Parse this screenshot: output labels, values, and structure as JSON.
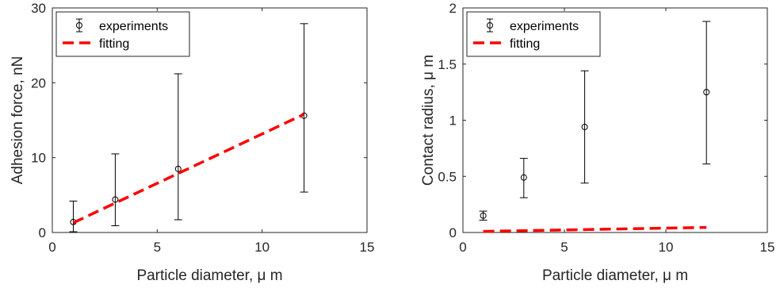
{
  "chart_data": [
    {
      "type": "scatter",
      "title": "",
      "xlabel": "Particle diameter, μ m",
      "ylabel": "Adhesion force, nN",
      "xlim": [
        0,
        15
      ],
      "ylim": [
        0,
        30
      ],
      "xticks": [
        0,
        5,
        10,
        15
      ],
      "yticks": [
        0,
        10,
        20,
        30
      ],
      "xtick_labels": [
        "0",
        "5",
        "10",
        "15"
      ],
      "ytick_labels": [
        "0",
        "10",
        "20",
        "30"
      ],
      "legend_position": "top-left",
      "grid": false,
      "series": [
        {
          "name": "experiments",
          "style": "errorbar",
          "color": "#000000",
          "points": [
            {
              "x": 1,
              "y": 1.4,
              "low": 0.1,
              "high": 4.2
            },
            {
              "x": 3,
              "y": 4.4,
              "low": 0.9,
              "high": 10.5
            },
            {
              "x": 6,
              "y": 8.5,
              "low": 1.7,
              "high": 21.2
            },
            {
              "x": 12,
              "y": 15.6,
              "low": 5.4,
              "high": 27.9
            }
          ]
        },
        {
          "name": "fitting",
          "style": "dashed-line",
          "color": "#ff0000",
          "points": [
            {
              "x": 1,
              "y": 1.3
            },
            {
              "x": 12,
              "y": 15.8
            }
          ]
        }
      ]
    },
    {
      "type": "scatter",
      "title": "",
      "xlabel": "Particle diameter, μ m",
      "ylabel": "Contact radius, μ m",
      "xlim": [
        0,
        15
      ],
      "ylim": [
        0,
        2
      ],
      "xticks": [
        0,
        5,
        10,
        15
      ],
      "yticks": [
        0,
        0.5,
        1,
        1.5,
        2
      ],
      "xtick_labels": [
        "0",
        "5",
        "10",
        "15"
      ],
      "ytick_labels": [
        "0",
        "0.5",
        "1",
        "1.5",
        "2"
      ],
      "legend_position": "top-left",
      "grid": false,
      "series": [
        {
          "name": "experiments",
          "style": "errorbar",
          "color": "#000000",
          "points": [
            {
              "x": 1,
              "y": 0.15,
              "low": 0.11,
              "high": 0.19
            },
            {
              "x": 3,
              "y": 0.49,
              "low": 0.31,
              "high": 0.66
            },
            {
              "x": 6,
              "y": 0.94,
              "low": 0.44,
              "high": 1.44
            },
            {
              "x": 12,
              "y": 1.25,
              "low": 0.61,
              "high": 1.88
            }
          ]
        },
        {
          "name": "fitting",
          "style": "dashed-line",
          "color": "#ff0000",
          "points": [
            {
              "x": 1,
              "y": 0.01
            },
            {
              "x": 12,
              "y": 0.045
            }
          ]
        }
      ]
    }
  ]
}
